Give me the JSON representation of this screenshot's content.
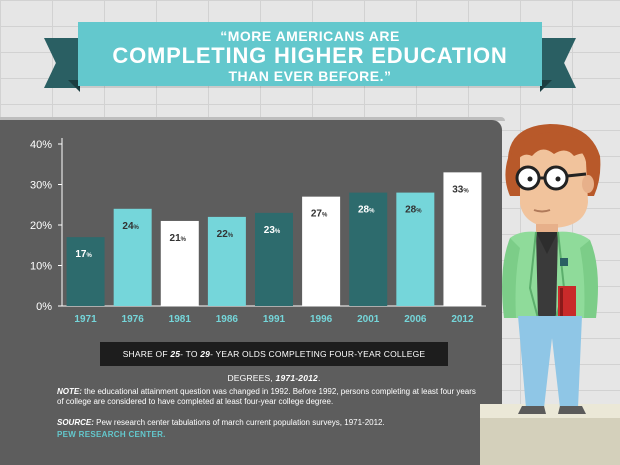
{
  "banner": {
    "line1": "“MORE AMERICANS ARE",
    "line2": "COMPLETING HIGHER EDUCATION",
    "line3": "THAN EVER BEFORE.”"
  },
  "caption": {
    "pre": "SHARE OF ",
    "a": "25",
    "mid1": "- TO ",
    "b": "29",
    "mid2": "- YEAR OLDS COMPLETING FOUR-YEAR COLLEGE DEGREES, ",
    "years": "1971-2012",
    "end": "."
  },
  "note": {
    "label": "NOTE:",
    "text": " the educational attainment question was changed in 1992. Before 1992, persons completing at least four years of college are considered to have completed at least four-year college degree."
  },
  "source": {
    "label": "SOURCE:",
    "text": " Pew research center tabulations of march current population surveys, 1971-2012."
  },
  "credit": "PEW RESEARCH CENTER.",
  "colors": {
    "banner": "#63c8cd",
    "dark_teal": "#2d6b6d",
    "light_teal": "#75d6da",
    "white": "#ffffff",
    "panel": "#5d5d5d"
  },
  "chart_data": {
    "type": "bar",
    "categories": [
      "1971",
      "1976",
      "1981",
      "1986",
      "1991",
      "1996",
      "2001",
      "2006",
      "2012"
    ],
    "values": [
      17,
      24,
      21,
      22,
      23,
      27,
      28,
      28,
      33
    ],
    "labels": [
      "17",
      "24",
      "21",
      "22",
      "23",
      "27",
      "28",
      "28",
      "33"
    ],
    "label_unit": "%",
    "bar_colors": [
      "#2d6b6d",
      "#75d6da",
      "#ffffff",
      "#75d6da",
      "#2d6b6d",
      "#ffffff",
      "#2d6b6d",
      "#75d6da",
      "#ffffff"
    ],
    "yticks": [
      "0%",
      "10%",
      "20%",
      "30%",
      "40%"
    ],
    "ytick_values": [
      0,
      10,
      20,
      30,
      40
    ],
    "ylim": [
      0,
      40
    ],
    "grid": false
  }
}
